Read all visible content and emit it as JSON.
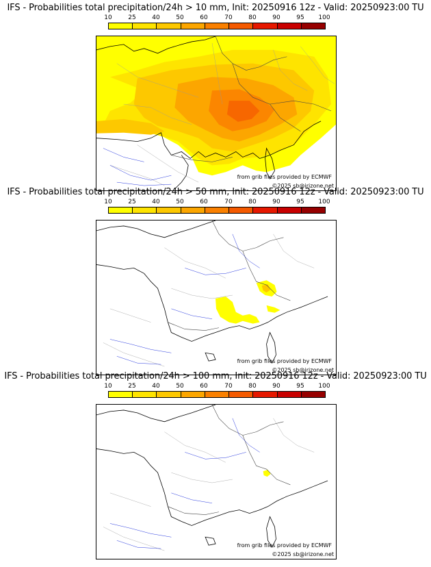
{
  "colors": {
    "scale": [
      "#ffff00",
      "#fee400",
      "#fdc800",
      "#fca600",
      "#fa8000",
      "#f55a00",
      "#e61800",
      "#c80000",
      "#960000",
      "#6e0000"
    ],
    "border": "#000000",
    "river": "#2233dd",
    "admin": "#999999",
    "coast": "#000000"
  },
  "legend": {
    "labels": [
      "10",
      "25",
      "40",
      "50",
      "60",
      "70",
      "80",
      "90",
      "95",
      "100"
    ]
  },
  "panels": [
    {
      "title": "IFS - Probabilities total precipitation/24h > 10 mm, Init: 20250916 12z - Valid: 20250923:00 TU",
      "credit": "from grib files provided by ECMWF",
      "copyright": "©2025 sb@irizone.net"
    },
    {
      "title": "IFS - Probabilities total precipitation/24h > 50 mm, Init: 20250916 12z - Valid: 20250923:00 TU",
      "credit": "from grib files provided by ECMWF",
      "copyright": "©2025 sb@irizone.net"
    },
    {
      "title": "IFS - Probabilities total precipitation/24h > 100 mm, Init: 20250916 12z - Valid: 20250923:00 TU",
      "credit": "from grib files provided by ECMWF",
      "copyright": "©2025 sb@irizone.net"
    }
  ]
}
